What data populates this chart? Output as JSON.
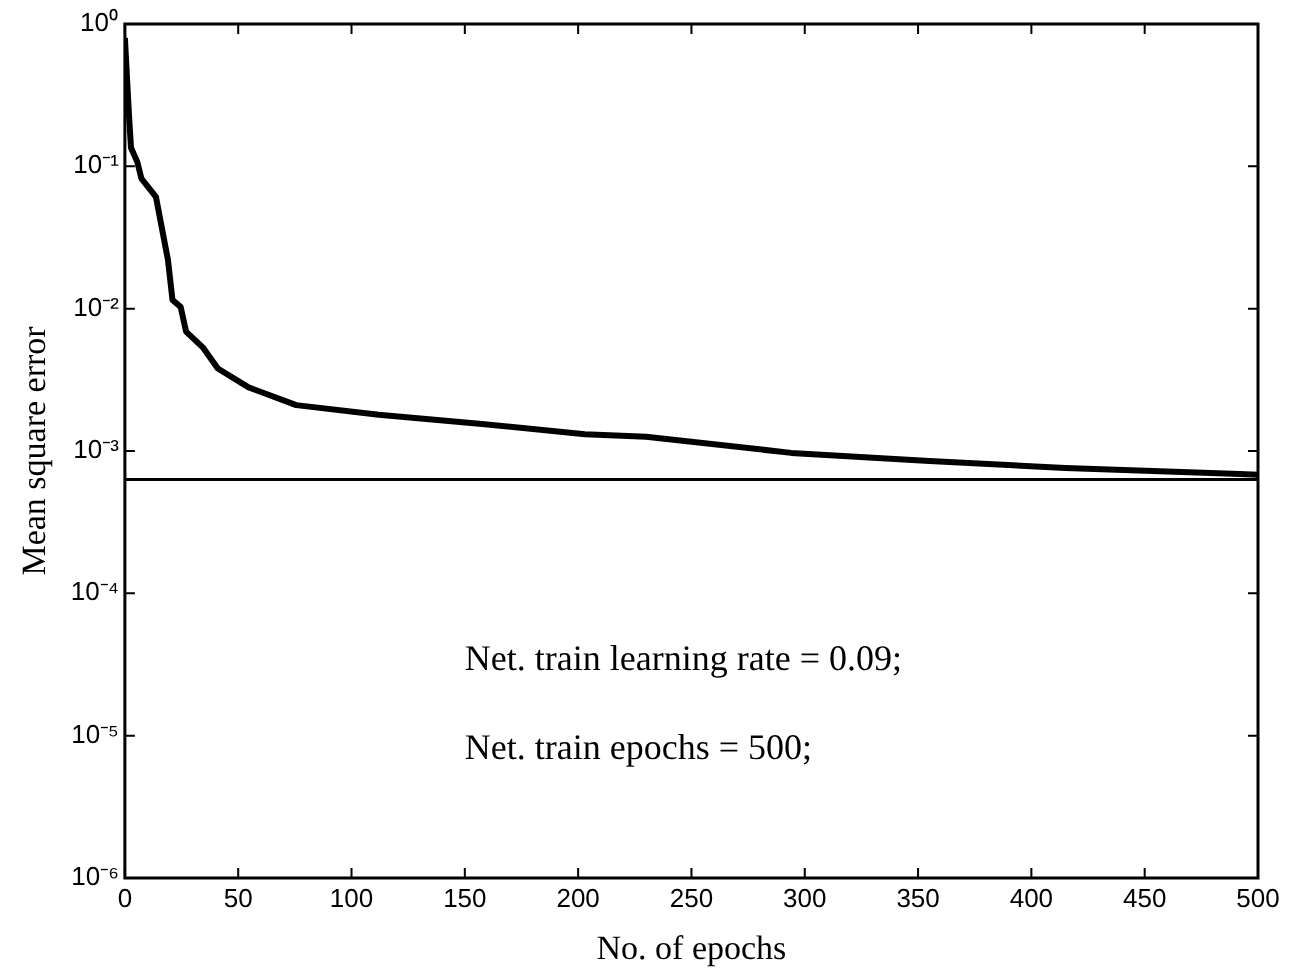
{
  "chart_data": {
    "type": "line",
    "xlabel": "No. of epochs",
    "ylabel": "Mean square error",
    "x": [
      0,
      1.8,
      2.7,
      5.5,
      7.3,
      13.7,
      19,
      21,
      24.6,
      27,
      34.6,
      41,
      54.6,
      75.6,
      112,
      157.6,
      203,
      230,
      294,
      355,
      415,
      492,
      500
    ],
    "series": [
      {
        "color": "#000000",
        "values": [
          0.8,
          0.23,
          0.135,
          0.107,
          0.082,
          0.061,
          0.022,
          0.0115,
          0.0103,
          0.0069,
          0.0053,
          0.0038,
          0.0028,
          0.0021,
          0.0018,
          0.00155,
          0.00131,
          0.00126,
          0.00097,
          0.00085,
          0.00076,
          0.00069,
          0.00068
        ]
      }
    ],
    "log": "y",
    "xlim": [
      0,
      500
    ],
    "xticks": [
      0,
      50,
      100,
      150,
      200,
      250,
      300,
      350,
      400,
      450,
      500
    ],
    "ylim": [
      1e-06,
      1
    ],
    "yticks": [
      {
        "value": 1e-06,
        "label": "10⁻⁶"
      },
      {
        "value": 1e-05,
        "label": "10⁻⁵"
      },
      {
        "value": 0.0001,
        "label": "10⁻⁴"
      },
      {
        "value": 0.001,
        "label": "10⁻³"
      },
      {
        "value": 0.01,
        "label": "10⁻²"
      },
      {
        "value": 0.1,
        "label": "10⁻¹"
      },
      {
        "value": 1,
        "label": "10⁰"
      }
    ],
    "ref_lines": [
      {
        "axis": "y",
        "value": 0.00063,
        "color": "#000000"
      }
    ],
    "annotations": [
      "Net. train learning rate = 0.09;",
      "Net. train epochs = 500;"
    ],
    "grid": false,
    "legend": false,
    "marker": "none",
    "line_style": "solid"
  }
}
